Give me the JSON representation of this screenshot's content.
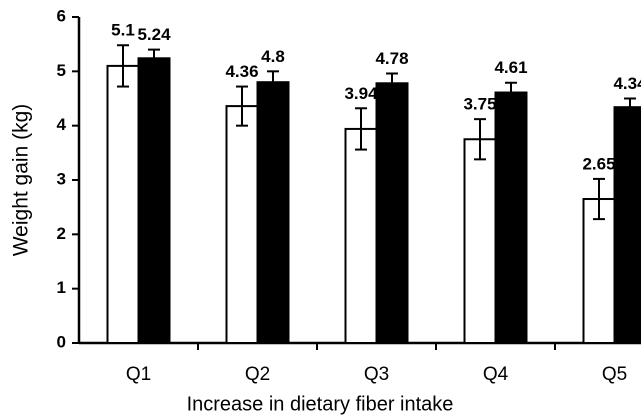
{
  "chart_data": {
    "type": "bar",
    "x_label": "Increase in dietary fiber intake",
    "y_label": "Weight gain (kg)",
    "categories": [
      "Q1",
      "Q2",
      "Q3",
      "Q4",
      "Q5"
    ],
    "series": [
      {
        "color": "#ffffff",
        "values": [
          5.1,
          4.36,
          3.94,
          3.75,
          2.65
        ],
        "errors": [
          0.38,
          0.36,
          0.38,
          0.37,
          0.37
        ]
      },
      {
        "color": "#000000",
        "values": [
          5.24,
          4.8,
          4.78,
          4.61,
          4.34
        ],
        "errors": [
          0.16,
          0.2,
          0.18,
          0.18,
          0.16
        ]
      }
    ],
    "ylim": [
      0,
      6
    ],
    "yticks": [
      0,
      1,
      2,
      3,
      4,
      5,
      6
    ]
  }
}
